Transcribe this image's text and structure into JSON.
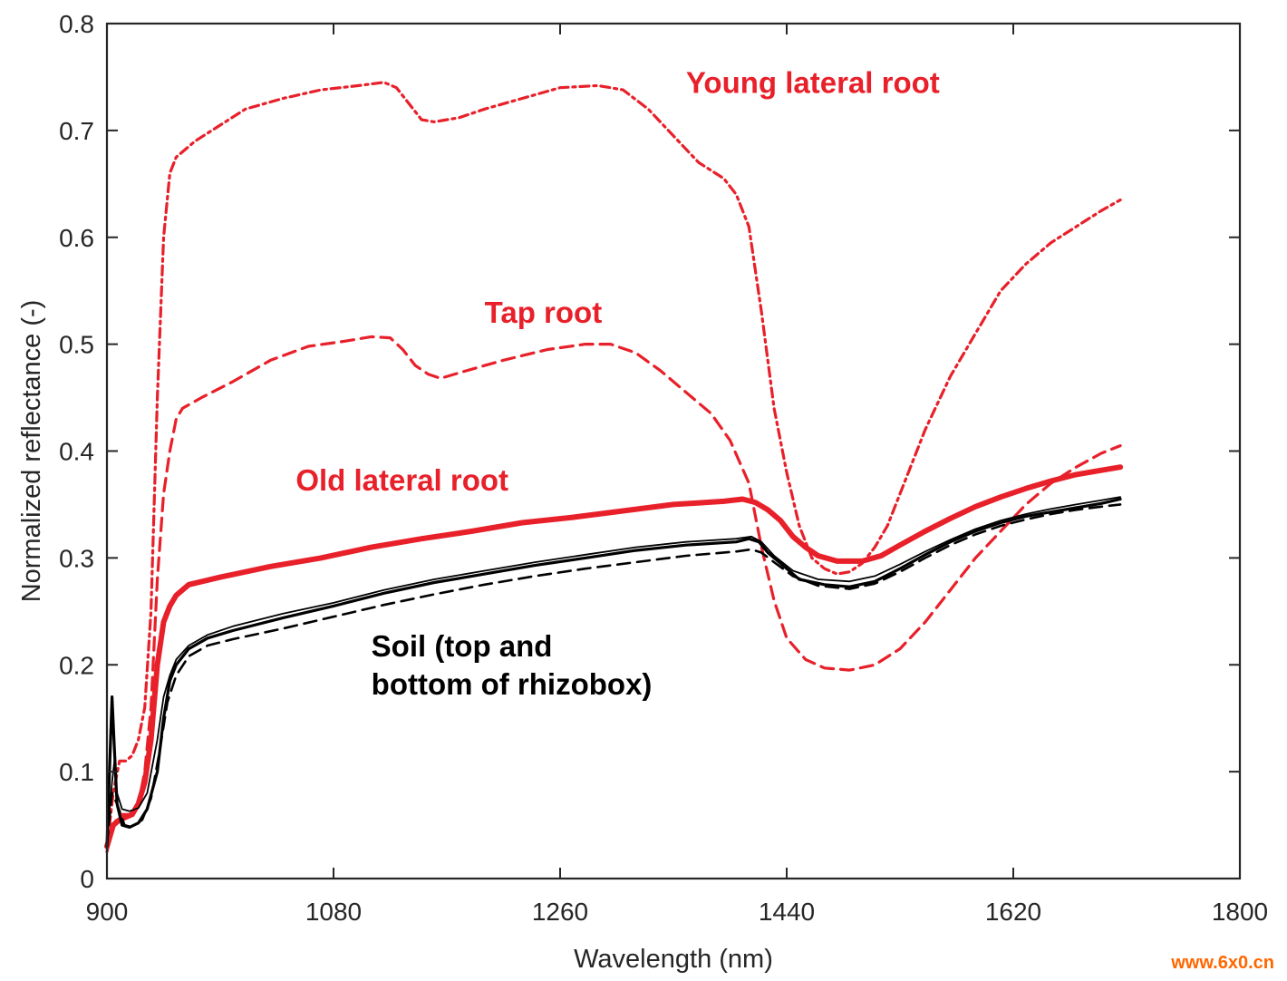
{
  "chart_data": {
    "type": "line",
    "xlabel": "Wavelength (nm)",
    "ylabel": "Normalized reflectance (-)",
    "xlim": [
      900,
      1800
    ],
    "ylim": [
      0,
      0.8
    ],
    "x_ticks": [
      "900",
      "1080",
      "1260",
      "1440",
      "1620",
      "1800"
    ],
    "y_ticks": [
      "0",
      "0.1",
      "0.2",
      "0.3",
      "0.4",
      "0.5",
      "0.6",
      "0.7",
      "0.8"
    ],
    "grid": false,
    "annotations": [
      {
        "lines": [
          "Young lateral root"
        ],
        "color": "#e8202a",
        "x": 1360,
        "y": 0.735
      },
      {
        "lines": [
          "Tap root"
        ],
        "color": "#e8202a",
        "x": 1200,
        "y": 0.52
      },
      {
        "lines": [
          "Old lateral root"
        ],
        "color": "#e8202a",
        "x": 1050,
        "y": 0.363
      },
      {
        "lines": [
          "Soil (top and",
          "bottom of rhizobox)"
        ],
        "color": "#000000",
        "x": 1110,
        "y": 0.208
      }
    ],
    "series": [
      {
        "id": "young",
        "color": "#e8202a",
        "dash": "10,5,3,5",
        "width": 3.2,
        "points": [
          [
            900,
            0.03
          ],
          [
            905,
            0.08
          ],
          [
            910,
            0.11
          ],
          [
            915,
            0.11
          ],
          [
            920,
            0.115
          ],
          [
            925,
            0.13
          ],
          [
            930,
            0.16
          ],
          [
            935,
            0.25
          ],
          [
            940,
            0.45
          ],
          [
            945,
            0.6
          ],
          [
            950,
            0.66
          ],
          [
            955,
            0.675
          ],
          [
            960,
            0.68
          ],
          [
            970,
            0.69
          ],
          [
            990,
            0.705
          ],
          [
            1010,
            0.72
          ],
          [
            1040,
            0.73
          ],
          [
            1070,
            0.738
          ],
          [
            1100,
            0.742
          ],
          [
            1120,
            0.745
          ],
          [
            1130,
            0.74
          ],
          [
            1140,
            0.725
          ],
          [
            1150,
            0.71
          ],
          [
            1160,
            0.708
          ],
          [
            1180,
            0.712
          ],
          [
            1200,
            0.72
          ],
          [
            1230,
            0.73
          ],
          [
            1260,
            0.74
          ],
          [
            1290,
            0.742
          ],
          [
            1310,
            0.738
          ],
          [
            1330,
            0.72
          ],
          [
            1350,
            0.695
          ],
          [
            1370,
            0.67
          ],
          [
            1390,
            0.655
          ],
          [
            1400,
            0.64
          ],
          [
            1410,
            0.61
          ],
          [
            1420,
            0.53
          ],
          [
            1430,
            0.44
          ],
          [
            1440,
            0.38
          ],
          [
            1450,
            0.33
          ],
          [
            1460,
            0.3
          ],
          [
            1470,
            0.29
          ],
          [
            1480,
            0.285
          ],
          [
            1490,
            0.287
          ],
          [
            1500,
            0.295
          ],
          [
            1510,
            0.31
          ],
          [
            1520,
            0.33
          ],
          [
            1530,
            0.36
          ],
          [
            1550,
            0.42
          ],
          [
            1570,
            0.47
          ],
          [
            1590,
            0.51
          ],
          [
            1610,
            0.55
          ],
          [
            1630,
            0.575
          ],
          [
            1650,
            0.595
          ],
          [
            1670,
            0.61
          ],
          [
            1690,
            0.625
          ],
          [
            1705,
            0.635
          ]
        ]
      },
      {
        "id": "tap",
        "color": "#e8202a",
        "dash": "14,8",
        "width": 3.2,
        "points": [
          [
            900,
            0.025
          ],
          [
            905,
            0.05
          ],
          [
            910,
            0.06
          ],
          [
            920,
            0.06
          ],
          [
            925,
            0.07
          ],
          [
            930,
            0.1
          ],
          [
            935,
            0.16
          ],
          [
            940,
            0.28
          ],
          [
            945,
            0.36
          ],
          [
            950,
            0.4
          ],
          [
            955,
            0.43
          ],
          [
            960,
            0.44
          ],
          [
            975,
            0.45
          ],
          [
            1000,
            0.465
          ],
          [
            1030,
            0.485
          ],
          [
            1060,
            0.498
          ],
          [
            1090,
            0.503
          ],
          [
            1110,
            0.507
          ],
          [
            1125,
            0.506
          ],
          [
            1135,
            0.495
          ],
          [
            1145,
            0.48
          ],
          [
            1155,
            0.472
          ],
          [
            1165,
            0.468
          ],
          [
            1185,
            0.475
          ],
          [
            1215,
            0.485
          ],
          [
            1250,
            0.495
          ],
          [
            1280,
            0.5
          ],
          [
            1300,
            0.5
          ],
          [
            1320,
            0.492
          ],
          [
            1340,
            0.475
          ],
          [
            1360,
            0.455
          ],
          [
            1380,
            0.435
          ],
          [
            1395,
            0.41
          ],
          [
            1410,
            0.37
          ],
          [
            1420,
            0.31
          ],
          [
            1430,
            0.26
          ],
          [
            1440,
            0.225
          ],
          [
            1455,
            0.205
          ],
          [
            1470,
            0.197
          ],
          [
            1490,
            0.195
          ],
          [
            1510,
            0.2
          ],
          [
            1530,
            0.215
          ],
          [
            1550,
            0.24
          ],
          [
            1570,
            0.27
          ],
          [
            1590,
            0.3
          ],
          [
            1610,
            0.325
          ],
          [
            1630,
            0.35
          ],
          [
            1650,
            0.37
          ],
          [
            1670,
            0.385
          ],
          [
            1690,
            0.398
          ],
          [
            1705,
            0.405
          ]
        ]
      },
      {
        "id": "old",
        "color": "#e8202a",
        "dash": "",
        "width": 6,
        "points": [
          [
            900,
            0.03
          ],
          [
            905,
            0.05
          ],
          [
            910,
            0.055
          ],
          [
            920,
            0.06
          ],
          [
            925,
            0.07
          ],
          [
            930,
            0.09
          ],
          [
            935,
            0.13
          ],
          [
            940,
            0.2
          ],
          [
            945,
            0.24
          ],
          [
            950,
            0.255
          ],
          [
            955,
            0.265
          ],
          [
            965,
            0.275
          ],
          [
            990,
            0.282
          ],
          [
            1030,
            0.292
          ],
          [
            1070,
            0.3
          ],
          [
            1110,
            0.31
          ],
          [
            1150,
            0.318
          ],
          [
            1190,
            0.325
          ],
          [
            1230,
            0.333
          ],
          [
            1270,
            0.338
          ],
          [
            1310,
            0.344
          ],
          [
            1350,
            0.35
          ],
          [
            1390,
            0.353
          ],
          [
            1405,
            0.355
          ],
          [
            1415,
            0.352
          ],
          [
            1425,
            0.345
          ],
          [
            1435,
            0.335
          ],
          [
            1445,
            0.32
          ],
          [
            1455,
            0.31
          ],
          [
            1465,
            0.302
          ],
          [
            1480,
            0.297
          ],
          [
            1500,
            0.297
          ],
          [
            1515,
            0.302
          ],
          [
            1530,
            0.312
          ],
          [
            1550,
            0.325
          ],
          [
            1570,
            0.337
          ],
          [
            1590,
            0.348
          ],
          [
            1610,
            0.357
          ],
          [
            1630,
            0.365
          ],
          [
            1650,
            0.372
          ],
          [
            1670,
            0.378
          ],
          [
            1690,
            0.382
          ],
          [
            1705,
            0.385
          ]
        ]
      },
      {
        "id": "soil-top",
        "color": "#000000",
        "dash": "",
        "width": 3.2,
        "points": [
          [
            900,
            0.03
          ],
          [
            902,
            0.1
          ],
          [
            904,
            0.17
          ],
          [
            906,
            0.12
          ],
          [
            908,
            0.07
          ],
          [
            912,
            0.05
          ],
          [
            918,
            0.048
          ],
          [
            925,
            0.052
          ],
          [
            932,
            0.065
          ],
          [
            940,
            0.1
          ],
          [
            945,
            0.15
          ],
          [
            950,
            0.185
          ],
          [
            955,
            0.2
          ],
          [
            965,
            0.215
          ],
          [
            980,
            0.225
          ],
          [
            1000,
            0.232
          ],
          [
            1040,
            0.244
          ],
          [
            1080,
            0.255
          ],
          [
            1120,
            0.267
          ],
          [
            1160,
            0.277
          ],
          [
            1200,
            0.285
          ],
          [
            1240,
            0.293
          ],
          [
            1280,
            0.3
          ],
          [
            1320,
            0.307
          ],
          [
            1360,
            0.312
          ],
          [
            1400,
            0.315
          ],
          [
            1410,
            0.318
          ],
          [
            1418,
            0.315
          ],
          [
            1425,
            0.305
          ],
          [
            1435,
            0.295
          ],
          [
            1450,
            0.28
          ],
          [
            1470,
            0.275
          ],
          [
            1490,
            0.273
          ],
          [
            1510,
            0.278
          ],
          [
            1530,
            0.29
          ],
          [
            1550,
            0.303
          ],
          [
            1570,
            0.315
          ],
          [
            1590,
            0.325
          ],
          [
            1610,
            0.333
          ],
          [
            1630,
            0.339
          ],
          [
            1650,
            0.343
          ],
          [
            1670,
            0.347
          ],
          [
            1690,
            0.351
          ],
          [
            1705,
            0.355
          ]
        ]
      },
      {
        "id": "soil-top-2",
        "color": "#000000",
        "dash": "",
        "width": 1.8,
        "points": [
          [
            900,
            0.035
          ],
          [
            904,
            0.09
          ],
          [
            906,
            0.11
          ],
          [
            908,
            0.08
          ],
          [
            912,
            0.065
          ],
          [
            918,
            0.063
          ],
          [
            925,
            0.066
          ],
          [
            932,
            0.08
          ],
          [
            940,
            0.13
          ],
          [
            945,
            0.17
          ],
          [
            950,
            0.19
          ],
          [
            955,
            0.205
          ],
          [
            965,
            0.218
          ],
          [
            980,
            0.228
          ],
          [
            1000,
            0.236
          ],
          [
            1040,
            0.248
          ],
          [
            1080,
            0.258
          ],
          [
            1120,
            0.27
          ],
          [
            1160,
            0.28
          ],
          [
            1200,
            0.288
          ],
          [
            1240,
            0.296
          ],
          [
            1280,
            0.303
          ],
          [
            1320,
            0.31
          ],
          [
            1360,
            0.315
          ],
          [
            1400,
            0.318
          ],
          [
            1412,
            0.32
          ],
          [
            1420,
            0.315
          ],
          [
            1430,
            0.302
          ],
          [
            1445,
            0.288
          ],
          [
            1465,
            0.28
          ],
          [
            1490,
            0.278
          ],
          [
            1510,
            0.283
          ],
          [
            1530,
            0.294
          ],
          [
            1550,
            0.306
          ],
          [
            1570,
            0.317
          ],
          [
            1590,
            0.327
          ],
          [
            1610,
            0.335
          ],
          [
            1630,
            0.341
          ],
          [
            1650,
            0.346
          ],
          [
            1670,
            0.35
          ],
          [
            1690,
            0.354
          ],
          [
            1705,
            0.357
          ]
        ]
      },
      {
        "id": "soil-bottom",
        "color": "#000000",
        "dash": "14,8",
        "width": 2.6,
        "points": [
          [
            900,
            0.032
          ],
          [
            904,
            0.08
          ],
          [
            908,
            0.07
          ],
          [
            914,
            0.05
          ],
          [
            920,
            0.048
          ],
          [
            928,
            0.055
          ],
          [
            935,
            0.075
          ],
          [
            942,
            0.12
          ],
          [
            948,
            0.165
          ],
          [
            955,
            0.19
          ],
          [
            965,
            0.208
          ],
          [
            980,
            0.218
          ],
          [
            1000,
            0.224
          ],
          [
            1040,
            0.234
          ],
          [
            1080,
            0.245
          ],
          [
            1120,
            0.256
          ],
          [
            1160,
            0.266
          ],
          [
            1200,
            0.275
          ],
          [
            1240,
            0.283
          ],
          [
            1280,
            0.29
          ],
          [
            1320,
            0.296
          ],
          [
            1360,
            0.302
          ],
          [
            1400,
            0.306
          ],
          [
            1412,
            0.308
          ],
          [
            1420,
            0.305
          ],
          [
            1430,
            0.296
          ],
          [
            1445,
            0.283
          ],
          [
            1465,
            0.274
          ],
          [
            1490,
            0.271
          ],
          [
            1510,
            0.276
          ],
          [
            1530,
            0.287
          ],
          [
            1550,
            0.3
          ],
          [
            1570,
            0.312
          ],
          [
            1590,
            0.322
          ],
          [
            1610,
            0.33
          ],
          [
            1630,
            0.336
          ],
          [
            1650,
            0.341
          ],
          [
            1670,
            0.345
          ],
          [
            1690,
            0.348
          ],
          [
            1705,
            0.35
          ]
        ]
      }
    ]
  },
  "watermark": "www.6x0.cn"
}
